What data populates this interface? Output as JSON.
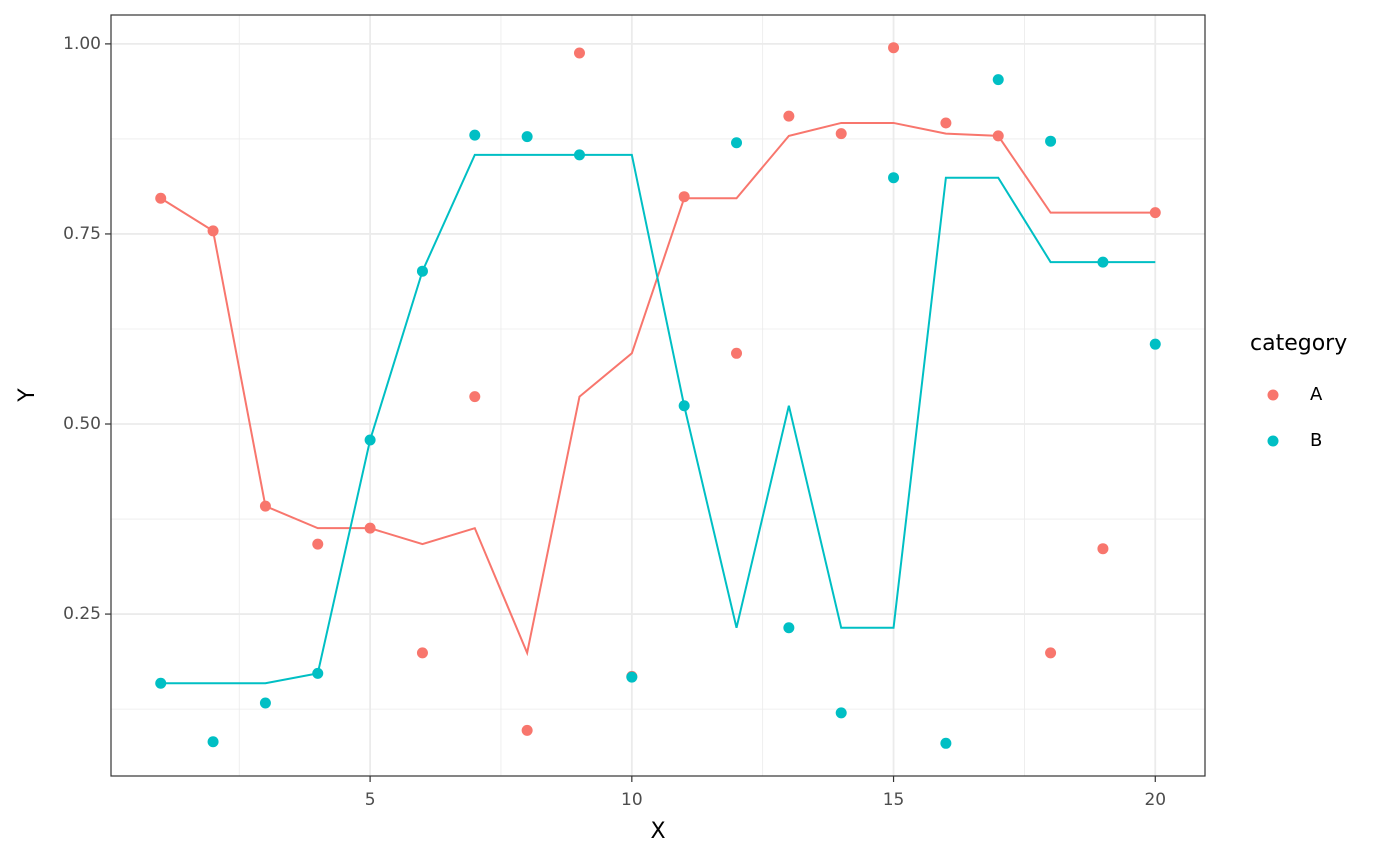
{
  "chart_data": {
    "type": "scatter",
    "x_label": "X",
    "y_label": "Y",
    "legend_title": "category",
    "legend_position": "right",
    "grid": true,
    "x": [
      1,
      2,
      3,
      4,
      5,
      6,
      7,
      8,
      9,
      10,
      11,
      12,
      13,
      14,
      15,
      16,
      17,
      18,
      19,
      20
    ],
    "series": [
      {
        "name": "A",
        "color": "#f8766d",
        "values": [
          0.797,
          0.754,
          0.392,
          0.342,
          0.363,
          0.199,
          0.536,
          0.097,
          0.988,
          0.168,
          0.799,
          0.593,
          0.905,
          0.882,
          0.995,
          0.896,
          0.879,
          0.199,
          0.336,
          0.778
        ],
        "line_values": [
          0.797,
          0.754,
          0.392,
          0.363,
          0.363,
          0.342,
          0.363,
          0.199,
          0.536,
          0.593,
          0.797,
          0.797,
          0.879,
          0.896,
          0.896,
          0.882,
          0.879,
          0.778,
          0.778,
          0.778
        ]
      },
      {
        "name": "B",
        "color": "#00bfc4",
        "values": [
          0.159,
          0.082,
          0.133,
          0.172,
          0.479,
          0.701,
          0.88,
          0.878,
          0.854,
          0.167,
          0.524,
          0.87,
          0.232,
          0.12,
          0.824,
          0.08,
          0.953,
          0.872,
          0.713,
          0.605
        ],
        "line_values": [
          0.159,
          0.159,
          0.159,
          0.172,
          0.479,
          0.701,
          0.854,
          0.854,
          0.854,
          0.854,
          0.524,
          0.232,
          0.524,
          0.232,
          0.232,
          0.824,
          0.824,
          0.713,
          0.713,
          0.713
        ]
      }
    ],
    "xlim": [
      0.05,
      20.95
    ],
    "ylim": [
      0.037,
      1.038
    ],
    "xticks": [
      5,
      10,
      15,
      20
    ],
    "yticks": [
      {
        "value": 0.25,
        "label": "0.25"
      },
      {
        "value": 0.5,
        "label": "0.50"
      },
      {
        "value": 0.75,
        "label": "0.75"
      },
      {
        "value": 1,
        "label": "1.00"
      }
    ],
    "xminor": [
      2.5,
      7.5,
      12.5,
      17.5
    ],
    "yminor": [
      0.125,
      0.375,
      0.625,
      0.875
    ]
  }
}
